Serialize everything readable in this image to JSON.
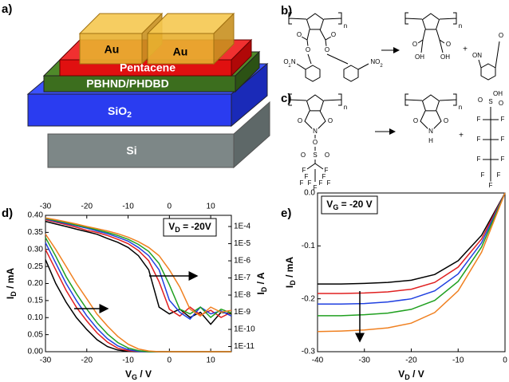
{
  "panel_labels": [
    "a)",
    "b)",
    "c)",
    "d)",
    "e)"
  ],
  "device": {
    "au_left": "Au",
    "au_right": "Au",
    "pentacene": "Pentacene",
    "dielectric": "PBHND/PHDBD",
    "oxide": [
      "SiO",
      "2"
    ],
    "substrate": "Si"
  },
  "scheme_b": {
    "reactant": [
      "O",
      "O",
      "O",
      "O",
      [
        "O",
        "2",
        "N"
      ],
      [
        "NO",
        "2"
      ],
      "n"
    ],
    "product": [
      "O",
      "O",
      "OH",
      "OH",
      "n"
    ],
    "plus": "+",
    "byproduct": [
      "ON",
      "O"
    ]
  },
  "scheme_c": {
    "reactant": [
      "n",
      "O",
      "O",
      "N",
      "O",
      "S",
      "O",
      "O",
      "F",
      "F",
      "F",
      "F",
      "F",
      "F",
      "F",
      "F",
      "F"
    ],
    "product": [
      "n",
      "O",
      "O",
      "N",
      "H"
    ],
    "plus": "+",
    "byproduct": [
      "OH",
      "O",
      "S",
      "O",
      "F",
      "F",
      "F",
      "F",
      "F",
      "F",
      "F",
      "F",
      "F"
    ]
  },
  "chart_data": [
    {
      "type": "line",
      "x": [
        -30,
        -27.5,
        -25,
        -22.5,
        -20,
        -17.5,
        -15,
        -12.5,
        -10,
        -7.5,
        -5,
        -2.5,
        0,
        2.5,
        5,
        7.5,
        10,
        12.5,
        15
      ],
      "xlim": [
        -30,
        15
      ],
      "xticks": [
        -30,
        -20,
        -10,
        0,
        10
      ],
      "x_top_labels": true,
      "ylim": [
        0,
        0.4
      ],
      "yticks": [
        {
          "value": 0,
          "label": "0.00"
        },
        0.05,
        {
          "value": 0.1,
          "label": "0.10"
        },
        0.15,
        {
          "value": 0.2,
          "label": "0.20"
        },
        0.25,
        {
          "value": 0.3,
          "label": "0.30"
        },
        0.35,
        {
          "value": 0.4,
          "label": "0.40"
        }
      ],
      "y2scale": "log",
      "y2lim": [
        5e-12,
        0.00045
      ],
      "y2ticks": [
        {
          "value": 0.0001,
          "label": "1E-4"
        },
        {
          "value": 1e-05,
          "label": "1E-5"
        },
        {
          "value": 1e-06,
          "label": "1E-6"
        },
        {
          "value": 1e-07,
          "label": "1E-7"
        },
        {
          "value": 1e-08,
          "label": "1E-8"
        },
        {
          "value": 1e-09,
          "label": "1E-9"
        },
        {
          "value": 1e-10,
          "label": "1E-10"
        },
        {
          "value": 1e-11,
          "label": "1E-11"
        }
      ],
      "x_label": [
        "V",
        "G",
        " / V"
      ],
      "y_label": [
        "I",
        "D",
        " / mA"
      ],
      "y2_label": [
        "I",
        "D",
        " / A"
      ],
      "annotation": [
        "V",
        "D",
        " = -20V"
      ],
      "series": [
        {
          "color": "#000000",
          "values": [
            0.27,
            0.2,
            0.145,
            0.1,
            0.065,
            0.035,
            0.015,
            0.005,
            0.001,
            0,
            0,
            0,
            0,
            0,
            0,
            0,
            0,
            0,
            0
          ]
        },
        {
          "color": "#e02020",
          "values": [
            0.3,
            0.24,
            0.18,
            0.13,
            0.09,
            0.055,
            0.028,
            0.01,
            0.003,
            0.001,
            0,
            0,
            0,
            0,
            0,
            0,
            0,
            0,
            0
          ]
        },
        {
          "color": "#2040e0",
          "values": [
            0.32,
            0.26,
            0.2,
            0.15,
            0.105,
            0.068,
            0.038,
            0.017,
            0.006,
            0.001,
            0,
            0,
            0,
            0,
            0,
            0,
            0,
            0,
            0
          ]
        },
        {
          "color": "#20a020",
          "values": [
            0.335,
            0.28,
            0.22,
            0.17,
            0.125,
            0.085,
            0.052,
            0.027,
            0.011,
            0.003,
            0,
            0,
            0,
            0,
            0,
            0,
            0,
            0,
            0
          ]
        },
        {
          "color": "#f08020",
          "values": [
            0.345,
            0.3,
            0.25,
            0.2,
            0.155,
            0.11,
            0.075,
            0.045,
            0.022,
            0.008,
            0.002,
            0,
            0,
            0,
            0,
            0,
            0,
            0,
            0
          ]
        },
        {
          "color": "#000000",
          "axis": "y2",
          "values": [
            0.0002,
            0.00014,
            0.0001,
            7e-05,
            5e-05,
            3.5e-05,
            2e-05,
            1.2e-05,
            6e-06,
            2e-06,
            3e-07,
            2e-09,
            8e-10,
            1.5e-09,
            5e-10,
            1e-09,
            2e-10,
            1e-09,
            8e-10
          ]
        },
        {
          "color": "#e02020",
          "axis": "y2",
          "values": [
            0.00025,
            0.00018,
            0.00013,
            9e-05,
            6e-05,
            4.5e-05,
            3e-05,
            1.8e-05,
            1e-05,
            4e-06,
            1e-06,
            6e-08,
            1.5e-09,
            6e-10,
            2e-09,
            7e-10,
            1.3e-09,
            5e-10,
            1e-09
          ]
        },
        {
          "color": "#2040e0",
          "axis": "y2",
          "values": [
            0.00028,
            0.0002,
            0.00015,
            0.00011,
            8e-05,
            5.5e-05,
            3.8e-05,
            2.4e-05,
            1.4e-05,
            6e-06,
            2e-06,
            3e-07,
            5e-09,
            1e-09,
            4e-10,
            2e-09,
            8e-10,
            1.2e-09,
            6e-10
          ]
        },
        {
          "color": "#20a020",
          "axis": "y2",
          "values": [
            0.0003,
            0.00022,
            0.00017,
            0.00012,
            9e-05,
            6.5e-05,
            4.5e-05,
            3e-05,
            1.8e-05,
            9e-06,
            3.5e-06,
            7e-07,
            4e-08,
            1.5e-09,
            8e-10,
            2e-09,
            5e-10,
            1.5e-09,
            9e-10
          ]
        },
        {
          "color": "#f08020",
          "axis": "y2",
          "values": [
            0.00032,
            0.00025,
            0.00019,
            0.00014,
            0.0001,
            7.5e-05,
            5.5e-05,
            3.8e-05,
            2.4e-05,
            1.3e-05,
            6e-06,
            2e-06,
            3e-07,
            3e-08,
            1.5e-09,
            6e-10,
            2e-09,
            1e-09,
            1.3e-09
          ]
        }
      ]
    },
    {
      "type": "line",
      "x": [
        -40,
        -35,
        -30,
        -25,
        -20,
        -15,
        -10,
        -5,
        0
      ],
      "xlim": [
        -40,
        0
      ],
      "xticks": [
        -40,
        -30,
        -20,
        -10,
        0
      ],
      "ylim": [
        -0.3,
        0
      ],
      "yticks": [
        -0.3,
        -0.2,
        -0.1,
        {
          "value": 0,
          "label": "0.0"
        }
      ],
      "x_label": [
        "V",
        "D",
        " / V"
      ],
      "y_label": [
        "I",
        "D",
        " / mA"
      ],
      "annotation": [
        "V",
        "G",
        " = -20 V"
      ],
      "series": [
        {
          "color": "#000000",
          "values": [
            -0.172,
            -0.172,
            -0.171,
            -0.169,
            -0.165,
            -0.154,
            -0.128,
            -0.08,
            0
          ]
        },
        {
          "color": "#e02020",
          "values": [
            -0.19,
            -0.19,
            -0.189,
            -0.187,
            -0.182,
            -0.169,
            -0.14,
            -0.087,
            0
          ]
        },
        {
          "color": "#2040e0",
          "values": [
            -0.21,
            -0.21,
            -0.209,
            -0.206,
            -0.2,
            -0.185,
            -0.153,
            -0.094,
            0
          ]
        },
        {
          "color": "#20a020",
          "values": [
            -0.232,
            -0.232,
            -0.23,
            -0.227,
            -0.22,
            -0.203,
            -0.167,
            -0.102,
            0
          ]
        },
        {
          "color": "#f08020",
          "values": [
            -0.262,
            -0.261,
            -0.259,
            -0.255,
            -0.246,
            -0.226,
            -0.185,
            -0.112,
            0
          ]
        }
      ]
    }
  ]
}
